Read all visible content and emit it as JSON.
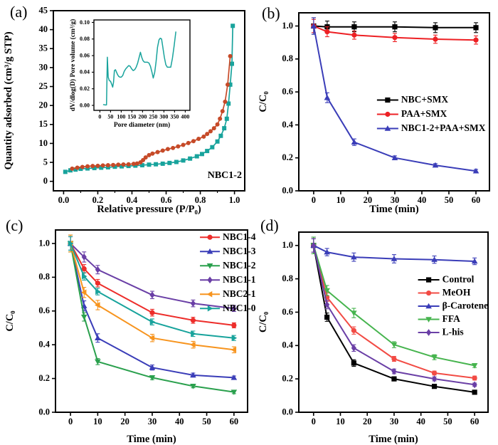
{
  "figure": {
    "background": "#ffffff",
    "panel_labels": {
      "a": "(a)",
      "b": "(b)",
      "c": "(c)",
      "d": "(d)"
    }
  },
  "chart_data": [
    {
      "id": "a-main",
      "panel": "a",
      "type": "line",
      "title": "",
      "xlabel": "Relative pressure (P/P₀)",
      "ylabel": "Quantity adsorbed (cm³/g STP)",
      "xlim": [
        -0.06,
        1.06
      ],
      "ylim": [
        -2.5,
        45
      ],
      "xticks": [
        0.0,
        0.2,
        0.4,
        0.6,
        0.8,
        1.0
      ],
      "xtick_labels": [
        "0.0",
        "0.2",
        "0.4",
        "0.6",
        "0.8",
        "1.0"
      ],
      "xminor": [
        0.1,
        0.3,
        0.5,
        0.7,
        0.9
      ],
      "yticks": [
        0,
        5,
        10,
        15,
        20,
        25,
        30,
        35,
        40,
        45
      ],
      "ytick_labels": [
        "0",
        "5",
        "10",
        "15",
        "20",
        "25",
        "30",
        "35",
        "40",
        "45"
      ],
      "annotation": {
        "text": "NBC1-2",
        "fx": 0.985,
        "fy": 0.917
      },
      "series": [
        {
          "name": "adsorption",
          "color": "#18a39c",
          "marker": "square",
          "points": [
            [
              0.01,
              2.5
            ],
            [
              0.04,
              2.9
            ],
            [
              0.07,
              3.1
            ],
            [
              0.1,
              3.3
            ],
            [
              0.14,
              3.4
            ],
            [
              0.18,
              3.5
            ],
            [
              0.22,
              3.6
            ],
            [
              0.26,
              3.7
            ],
            [
              0.3,
              3.85
            ],
            [
              0.34,
              3.95
            ],
            [
              0.38,
              4.05
            ],
            [
              0.42,
              4.15
            ],
            [
              0.46,
              4.25
            ],
            [
              0.5,
              4.4
            ],
            [
              0.54,
              4.5
            ],
            [
              0.58,
              4.65
            ],
            [
              0.62,
              4.85
            ],
            [
              0.66,
              5.1
            ],
            [
              0.7,
              5.5
            ],
            [
              0.74,
              6.0
            ],
            [
              0.78,
              6.6
            ],
            [
              0.81,
              7.2
            ],
            [
              0.84,
              8.0
            ],
            [
              0.87,
              9.0
            ],
            [
              0.9,
              10.5
            ],
            [
              0.92,
              12.0
            ],
            [
              0.94,
              14.0
            ],
            [
              0.955,
              16.5
            ],
            [
              0.965,
              20.5
            ],
            [
              0.975,
              25.5
            ],
            [
              0.985,
              31.0
            ],
            [
              0.99,
              41.0
            ]
          ]
        },
        {
          "name": "desorption",
          "color": "#c64a28",
          "marker": "circle",
          "points": [
            [
              0.975,
              33.0
            ],
            [
              0.96,
              25.5
            ],
            [
              0.945,
              21.0
            ],
            [
              0.93,
              18.5
            ],
            [
              0.915,
              16.5
            ],
            [
              0.9,
              15.0
            ],
            [
              0.88,
              14.0
            ],
            [
              0.86,
              13.2
            ],
            [
              0.84,
              12.5
            ],
            [
              0.82,
              11.8
            ],
            [
              0.79,
              11.2
            ],
            [
              0.76,
              10.6
            ],
            [
              0.73,
              10.1
            ],
            [
              0.7,
              9.6
            ],
            [
              0.67,
              9.2
            ],
            [
              0.64,
              8.8
            ],
            [
              0.61,
              8.5
            ],
            [
              0.58,
              8.1
            ],
            [
              0.55,
              7.7
            ],
            [
              0.52,
              7.3
            ],
            [
              0.5,
              6.9
            ],
            [
              0.48,
              6.3
            ],
            [
              0.465,
              5.6
            ],
            [
              0.45,
              5.0
            ],
            [
              0.43,
              4.7
            ],
            [
              0.41,
              4.6
            ],
            [
              0.38,
              4.5
            ],
            [
              0.35,
              4.45
            ],
            [
              0.32,
              4.4
            ],
            [
              0.29,
              4.3
            ],
            [
              0.26,
              4.25
            ],
            [
              0.23,
              4.2
            ],
            [
              0.2,
              4.1
            ],
            [
              0.17,
              4.05
            ],
            [
              0.14,
              3.95
            ],
            [
              0.11,
              3.8
            ],
            [
              0.08,
              3.6
            ],
            [
              0.05,
              3.35
            ]
          ]
        }
      ]
    },
    {
      "id": "a-inset",
      "panel": "a",
      "type": "line",
      "title": "",
      "xlabel": "Pore diameter (nm)",
      "ylabel": "dV/dlog(D) Pore volume (cm³/g)",
      "xlim": [
        -28,
        422
      ],
      "ylim": [
        -0.006,
        0.103
      ],
      "xticks": [
        0,
        50,
        100,
        150,
        200,
        250,
        300,
        350,
        400
      ],
      "xtick_labels": [
        "0",
        "50",
        "100",
        "150",
        "200",
        "250",
        "300",
        "350",
        "400"
      ],
      "yticks": [
        0.0,
        0.02,
        0.04,
        0.06,
        0.08,
        0.1
      ],
      "ytick_labels": [
        "0.00",
        "0.02",
        "0.04",
        "0.06",
        "0.08",
        "0.10"
      ],
      "series": [
        {
          "name": "pore-volume",
          "color": "#18a39c",
          "marker": "none",
          "points": [
            [
              15,
              0.001
            ],
            [
              25,
              0.0005
            ],
            [
              31,
              0.0005
            ],
            [
              35,
              0.058
            ],
            [
              39,
              0.034
            ],
            [
              44,
              0.03
            ],
            [
              50,
              0.029
            ],
            [
              56,
              0.025
            ],
            [
              60,
              0.022
            ],
            [
              64,
              0.028
            ],
            [
              68,
              0.042
            ],
            [
              73,
              0.043
            ],
            [
              78,
              0.04
            ],
            [
              83,
              0.037
            ],
            [
              88,
              0.035
            ],
            [
              94,
              0.034
            ],
            [
              100,
              0.034
            ],
            [
              107,
              0.036
            ],
            [
              114,
              0.041
            ],
            [
              121,
              0.044
            ],
            [
              128,
              0.046
            ],
            [
              135,
              0.048
            ],
            [
              142,
              0.047
            ],
            [
              149,
              0.044
            ],
            [
              156,
              0.042
            ],
            [
              163,
              0.043
            ],
            [
              170,
              0.046
            ],
            [
              177,
              0.051
            ],
            [
              184,
              0.058
            ],
            [
              190,
              0.064
            ],
            [
              196,
              0.058
            ],
            [
              202,
              0.054
            ],
            [
              209,
              0.052
            ],
            [
              216,
              0.052
            ],
            [
              223,
              0.052
            ],
            [
              230,
              0.051
            ],
            [
              237,
              0.047
            ],
            [
              244,
              0.04
            ],
            [
              250,
              0.033
            ],
            [
              257,
              0.04
            ],
            [
              263,
              0.052
            ],
            [
              270,
              0.07
            ],
            [
              277,
              0.079
            ],
            [
              283,
              0.081
            ],
            [
              289,
              0.08
            ],
            [
              295,
              0.07
            ],
            [
              302,
              0.058
            ],
            [
              309,
              0.049
            ],
            [
              316,
              0.046
            ],
            [
              324,
              0.046
            ],
            [
              332,
              0.046
            ],
            [
              340,
              0.057
            ],
            [
              348,
              0.072
            ],
            [
              356,
              0.089
            ]
          ]
        }
      ]
    },
    {
      "id": "b",
      "panel": "b",
      "type": "line",
      "title": "",
      "xlabel": "Time (min)",
      "ylabel": "C/C₀",
      "xlim": [
        -5.5,
        65
      ],
      "ylim": [
        0,
        1.08
      ],
      "x": [
        0,
        5,
        15,
        30,
        45,
        60
      ],
      "xticks": [
        0,
        10,
        20,
        30,
        40,
        50,
        60
      ],
      "xtick_labels": [
        "0",
        "10",
        "20",
        "30",
        "40",
        "50",
        "60"
      ],
      "yticks": [
        0.0,
        0.2,
        0.4,
        0.6,
        0.8,
        1.0
      ],
      "ytick_labels": [
        "0.0",
        "0.2",
        "0.4",
        "0.6",
        "0.8",
        "1.0"
      ],
      "legend": {
        "pos": "middle-right",
        "fx": 0.41,
        "fy": 0.49,
        "dy": 20,
        "len": 30
      },
      "series": [
        {
          "name": "NBC+SMX",
          "color": "#000000",
          "marker": "square",
          "values": [
            1.0,
            0.995,
            0.995,
            0.995,
            0.99,
            0.99
          ],
          "err": [
            0.05,
            0.035,
            0.03,
            0.03,
            0.03,
            0.03
          ]
        },
        {
          "name": "PAA+SMX",
          "color": "#ed2024",
          "marker": "circle",
          "values": [
            1.0,
            0.965,
            0.945,
            0.93,
            0.92,
            0.915
          ],
          "err": [
            0.04,
            0.03,
            0.025,
            0.025,
            0.025,
            0.025
          ]
        },
        {
          "name": "NBC1-2+PAA+SMX",
          "color": "#3a3db8",
          "marker": "triangle-up",
          "values": [
            1.0,
            0.565,
            0.295,
            0.2,
            0.155,
            0.12
          ],
          "err": [
            0.05,
            0.03,
            0.02,
            0.012,
            0.01,
            0.01
          ]
        }
      ]
    },
    {
      "id": "c",
      "panel": "c",
      "type": "line",
      "title": "",
      "xlabel": "Time (min)",
      "ylabel": "C/C₀",
      "xlim": [
        -5.5,
        65
      ],
      "ylim": [
        0,
        1.08
      ],
      "x": [
        0,
        5,
        10,
        30,
        45,
        60
      ],
      "xticks": [
        0,
        10,
        20,
        30,
        40,
        50,
        60
      ],
      "xtick_labels": [
        "0",
        "10",
        "20",
        "30",
        "40",
        "50",
        "60"
      ],
      "yticks": [
        0.0,
        0.2,
        0.4,
        0.6,
        0.8,
        1.0
      ],
      "ytick_labels": [
        "0.0",
        "0.2",
        "0.4",
        "0.6",
        "0.8",
        "1.0"
      ],
      "legend": {
        "pos": "top-right",
        "fx": 0.752,
        "fy": 0.04,
        "dy": 20,
        "len": 28
      },
      "series": [
        {
          "name": "NBC1-4",
          "color": "#ed2d2a",
          "marker": "circle",
          "values": [
            1.0,
            0.85,
            0.765,
            0.59,
            0.545,
            0.515
          ],
          "err": [
            0.04,
            0.025,
            0.022,
            0.02,
            0.018,
            0.015
          ]
        },
        {
          "name": "NBC1-3",
          "color": "#3a3db8",
          "marker": "triangle-up",
          "values": [
            1.0,
            0.63,
            0.44,
            0.265,
            0.22,
            0.205
          ],
          "err": [
            0.04,
            0.03,
            0.025,
            0.015,
            0.012,
            0.01
          ]
        },
        {
          "name": "NBC1-2",
          "color": "#2aa04d",
          "marker": "triangle-down",
          "values": [
            1.0,
            0.565,
            0.3,
            0.205,
            0.155,
            0.12
          ],
          "err": [
            0.05,
            0.025,
            0.018,
            0.012,
            0.01,
            0.01
          ]
        },
        {
          "name": "NBC1-1",
          "color": "#6a3fa6",
          "marker": "diamond",
          "values": [
            1.0,
            0.92,
            0.845,
            0.695,
            0.645,
            0.615
          ],
          "err": [
            0.04,
            0.03,
            0.025,
            0.022,
            0.02,
            0.018
          ]
        },
        {
          "name": "NBC2-1",
          "color": "#f7941e",
          "marker": "triangle-left",
          "values": [
            1.0,
            0.71,
            0.635,
            0.44,
            0.4,
            0.37
          ],
          "err": [
            0.05,
            0.03,
            0.028,
            0.022,
            0.02,
            0.018
          ]
        },
        {
          "name": "NBC1-0",
          "color": "#18a39c",
          "marker": "triangle-right",
          "values": [
            1.0,
            0.805,
            0.715,
            0.535,
            0.465,
            0.44
          ],
          "err": [
            0.04,
            0.022,
            0.02,
            0.018,
            0.016,
            0.015
          ]
        }
      ]
    },
    {
      "id": "d",
      "panel": "d",
      "type": "line",
      "title": "",
      "xlabel": "Time (min)",
      "ylabel": "C/C₀",
      "xlim": [
        -5.5,
        65
      ],
      "ylim": [
        0,
        1.08
      ],
      "x": [
        0,
        5,
        15,
        30,
        45,
        60
      ],
      "xticks": [
        0,
        10,
        20,
        30,
        40,
        50,
        60
      ],
      "xtick_labels": [
        "0",
        "10",
        "20",
        "30",
        "40",
        "50",
        "60"
      ],
      "yticks": [
        0.0,
        0.2,
        0.4,
        0.6,
        0.8,
        1.0
      ],
      "ytick_labels": [
        "0.0",
        "0.2",
        "0.4",
        "0.6",
        "0.8",
        "1.0"
      ],
      "legend": {
        "pos": "middle-right",
        "fx": 0.63,
        "fy": 0.265,
        "dy": 18.5,
        "len": 30
      },
      "series": [
        {
          "name": "Control",
          "color": "#000000",
          "marker": "square",
          "values": [
            1.0,
            0.57,
            0.295,
            0.2,
            0.155,
            0.12
          ],
          "err": [
            0.05,
            0.025,
            0.02,
            0.012,
            0.01,
            0.01
          ]
        },
        {
          "name": "MeOH",
          "color": "#f24b44",
          "marker": "circle",
          "values": [
            1.0,
            0.69,
            0.49,
            0.32,
            0.235,
            0.205
          ],
          "err": [
            0.04,
            0.025,
            0.022,
            0.015,
            0.012,
            0.012
          ]
        },
        {
          "name": "β-Carotene",
          "color": "#3a3db8",
          "marker": "triangle-up",
          "values": [
            1.0,
            0.96,
            0.93,
            0.92,
            0.915,
            0.905
          ],
          "err": [
            0.04,
            0.022,
            0.025,
            0.025,
            0.022,
            0.02
          ]
        },
        {
          "name": "FFA",
          "color": "#46b44e",
          "marker": "triangle-down",
          "values": [
            1.0,
            0.73,
            0.595,
            0.405,
            0.33,
            0.28
          ],
          "err": [
            0.05,
            0.03,
            0.028,
            0.018,
            0.015,
            0.012
          ]
        },
        {
          "name": "L-his",
          "color": "#6a3fa6",
          "marker": "diamond",
          "values": [
            1.0,
            0.645,
            0.385,
            0.245,
            0.2,
            0.165
          ],
          "err": [
            0.04,
            0.025,
            0.02,
            0.014,
            0.012,
            0.01
          ]
        }
      ]
    }
  ]
}
